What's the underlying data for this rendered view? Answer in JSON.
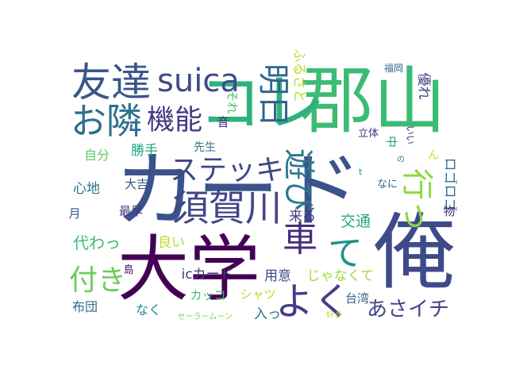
{
  "words": [
    {
      "text": "カード",
      "rot": 0,
      "color": "#3b528b"
    },
    {
      "text": "大学",
      "rot": 0,
      "color": "#440154"
    },
    {
      "text": "俺",
      "rot": 0,
      "color": "#3e4a89"
    },
    {
      "text": "郡山",
      "rot": 0,
      "color": "#3cbb75"
    },
    {
      "text": "コレ",
      "rot": 0,
      "color": "#2db27d"
    },
    {
      "text": "友達",
      "rot": 0,
      "color": "#39568c"
    },
    {
      "text": "suica",
      "rot": 0,
      "color": "#3e4a89"
    },
    {
      "text": "お隣",
      "rot": 0,
      "color": "#2d708e"
    },
    {
      "text": "機能",
      "rot": 0,
      "color": "#453781"
    },
    {
      "text": "明日",
      "rot": 90,
      "color": "#32648e"
    },
    {
      "text": "ステッキ",
      "rot": 0,
      "color": "#404688"
    },
    {
      "text": "遊び",
      "rot": 90,
      "color": "#2a788e"
    },
    {
      "text": "須賀川",
      "rot": 0,
      "color": "#414487"
    },
    {
      "text": "行っ",
      "rot": 90,
      "color": "#8fd744"
    },
    {
      "text": "車",
      "rot": 0,
      "color": "#472d7b"
    },
    {
      "text": "て",
      "rot": 0,
      "color": "#21918c"
    },
    {
      "text": "よく",
      "rot": 0,
      "color": "#433e85"
    },
    {
      "text": "付き",
      "rot": 0,
      "color": "#6ccd5a"
    },
    {
      "text": "あさイチ",
      "rot": 0,
      "color": "#414487"
    },
    {
      "text": "ふるさと",
      "rot": 90,
      "color": "#b5de2b"
    },
    {
      "text": "それ",
      "rot": 90,
      "color": "#4ac16d"
    },
    {
      "text": "音",
      "rot": 0,
      "color": "#472c7a"
    },
    {
      "text": "自分",
      "rot": 0,
      "color": "#5ec962"
    },
    {
      "text": "勝手",
      "rot": 0,
      "color": "#20a486"
    },
    {
      "text": "先生",
      "rot": 0,
      "color": "#2a788e"
    },
    {
      "text": "心地",
      "rot": 0,
      "color": "#2c728e"
    },
    {
      "text": "大吉",
      "rot": 0,
      "color": "#3b528b"
    },
    {
      "text": "月",
      "rot": 0,
      "color": "#3a548c"
    },
    {
      "text": "最早",
      "rot": 0,
      "color": "#443a83"
    },
    {
      "text": "来る",
      "rot": 0,
      "color": "#46337f"
    },
    {
      "text": "代わっ",
      "rot": 0,
      "color": "#3cbb75"
    },
    {
      "text": "良い",
      "rot": 0,
      "color": "#b8de29"
    },
    {
      "text": "交通",
      "rot": 0,
      "color": "#22a884"
    },
    {
      "text": "島",
      "rot": 0,
      "color": "#471164"
    },
    {
      "text": "icカード",
      "rot": 0,
      "color": "#453781"
    },
    {
      "text": "用意",
      "rot": 0,
      "color": "#3e4a89"
    },
    {
      "text": "じゃなくて",
      "rot": 0,
      "color": "#a2da37"
    },
    {
      "text": "布団",
      "rot": 0,
      "color": "#2f6c8e"
    },
    {
      "text": "なく",
      "rot": 0,
      "color": "#25858e"
    },
    {
      "text": "カッコ",
      "rot": 0,
      "color": "#3cbb75"
    },
    {
      "text": "シャツ",
      "rot": 0,
      "color": "#b5de2b"
    },
    {
      "text": "入っ",
      "rot": 0,
      "color": "#2c728e"
    },
    {
      "text": "台湾",
      "rot": 0,
      "color": "#33638d"
    },
    {
      "text": "セーラームーン",
      "rot": 0,
      "color": "#86d549"
    },
    {
      "text": "好き",
      "rot": 0,
      "color": "#b5de2b"
    },
    {
      "text": "福岡",
      "rot": 0,
      "color": "#31688e"
    },
    {
      "text": "優れ",
      "rot": 90,
      "color": "#414487"
    },
    {
      "text": "立体",
      "rot": 0,
      "color": "#46327e"
    },
    {
      "text": "中",
      "rot": 90,
      "color": "#1f9e89"
    },
    {
      "text": "いい",
      "rot": 90,
      "color": "#46337f"
    },
    {
      "text": "ロゴロゴ",
      "rot": 90,
      "color": "#2e6e8e"
    },
    {
      "text": "の",
      "rot": 0,
      "color": "#277f8e"
    },
    {
      "text": "ん",
      "rot": 0,
      "color": "#c8e020"
    },
    {
      "text": "t",
      "rot": 0,
      "color": "#21918c"
    },
    {
      "text": "なに",
      "rot": 0,
      "color": "#32658e"
    },
    {
      "text": "物",
      "rot": 0,
      "color": "#482576"
    }
  ]
}
